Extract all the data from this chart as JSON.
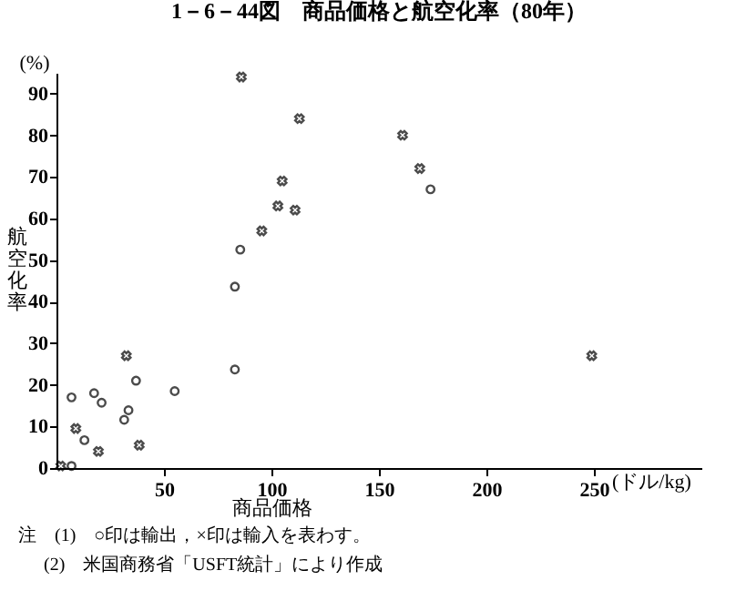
{
  "chart_data": {
    "type": "scatter",
    "title": "1－6－44図　商品価格と航空化率（80年）",
    "xlabel": "商品価格",
    "ylabel": "航空化率",
    "annotations": [
      "(%)",
      "(ドル/kg)",
      "注　(1)　○印は輸出，×印は輸入を表わす。",
      "(2)　米国商務省「USFT統計」により作成"
    ],
    "xlim": [
      0,
      300
    ],
    "xticks": [
      50,
      100,
      150,
      200,
      250
    ],
    "ylim": [
      0,
      95
    ],
    "yticks": [
      0,
      10,
      20,
      30,
      40,
      50,
      60,
      70,
      80,
      90
    ],
    "grid": false,
    "series": [
      {
        "color": "#000000",
        "marker": "circle",
        "x": [
          7,
          13,
          7,
          17.5,
          21,
          31.5,
          33.5,
          37,
          55,
          83,
          83,
          85.5,
          174
        ],
        "values": [
          0.5,
          6.7,
          17,
          18,
          15.7,
          11.6,
          13.9,
          21,
          18.5,
          23.7,
          43.6,
          52.5,
          67
        ]
      },
      {
        "color": "#000000",
        "marker": "cross",
        "x": [
          2,
          9,
          19.5,
          38.5,
          32.5,
          86,
          95.5,
          103,
          105,
          111,
          113,
          161,
          169,
          249
        ],
        "values": [
          0.5,
          9.5,
          4,
          5.5,
          27,
          94,
          57,
          63,
          69,
          62,
          84,
          80,
          72,
          27
        ]
      }
    ]
  }
}
